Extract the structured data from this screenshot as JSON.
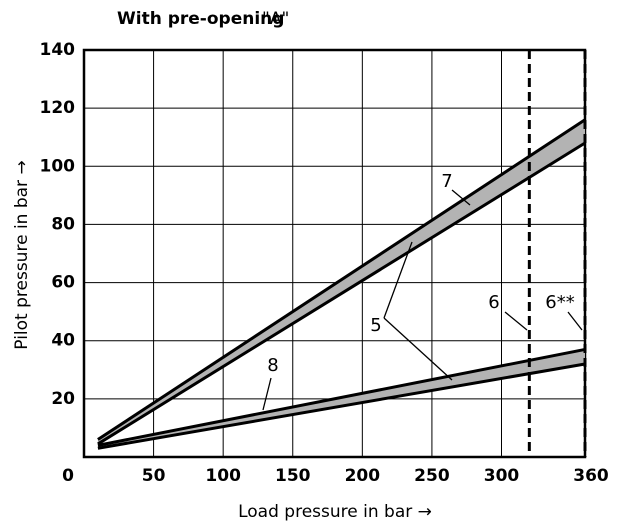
{
  "chart_data": {
    "type": "band",
    "title": "With pre-opening",
    "title_suffix": "\"A\"",
    "x_label": "Load pressure in bar →",
    "y_label": "Pilot pressure in bar →",
    "x": [
      10,
      360
    ],
    "series": [
      {
        "values_upper": [
          6,
          116
        ],
        "values_lower": [
          4.5,
          108
        ],
        "color": "#000000",
        "fill": "#b3b3b3"
      },
      {
        "values_upper": [
          4,
          37
        ],
        "values_lower": [
          3,
          32
        ],
        "color": "#000000",
        "fill": "#b3b3b3"
      }
    ],
    "vlines": [
      320,
      360
    ],
    "xlim": [
      0,
      360
    ],
    "ylim": [
      0,
      140
    ],
    "xticks": [
      0,
      50,
      100,
      150,
      200,
      250,
      300,
      360
    ],
    "yticks": [
      20,
      40,
      60,
      80,
      100,
      120,
      140
    ],
    "grid": true,
    "annotations": [
      "5",
      "7",
      "8",
      "6",
      "6**"
    ]
  }
}
